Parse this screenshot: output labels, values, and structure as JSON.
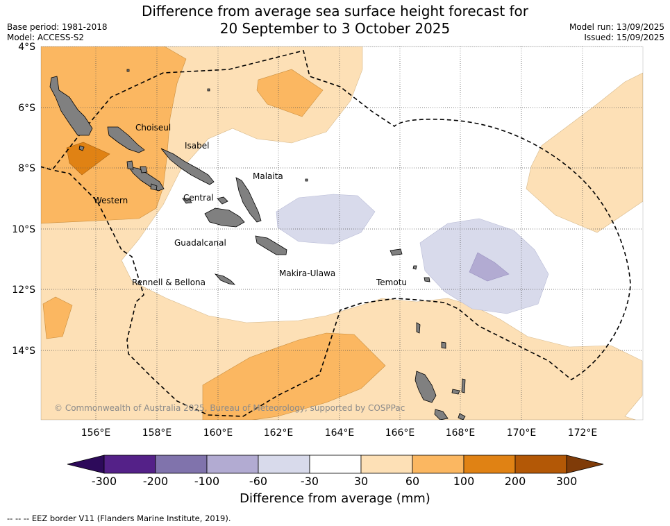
{
  "header": {
    "title_line1": "Difference from average sea surface height forecast for",
    "title_line2": "20 September to 3 October 2025",
    "base_period": "Base period: 1981-2018",
    "model": "Model: ACCESS-S2",
    "model_run": "Model run: 13/09/2025",
    "issued": "Issued: 15/09/2025"
  },
  "map": {
    "lat_ticks": [
      "4°S",
      "6°S",
      "8°S",
      "10°S",
      "12°S",
      "14°S"
    ],
    "lon_ticks": [
      "156°E",
      "158°E",
      "160°E",
      "162°E",
      "164°E",
      "166°E",
      "168°E",
      "170°E",
      "172°E"
    ],
    "province_labels": [
      "Choiseul",
      "Isabel",
      "Malaita",
      "Western",
      "Central",
      "Guadalcanal",
      "Makira-Ulawa",
      "Rennell & Bellona",
      "Temotu"
    ],
    "copyright": "© Commonwealth of Australia 2025, Bureau of Meteorology, supported by COSPPac"
  },
  "colorbar": {
    "title": "Difference from average (mm)",
    "labels": [
      "-300",
      "-200",
      "-100",
      "-60",
      "-30",
      "30",
      "60",
      "100",
      "200",
      "300"
    ],
    "colors": [
      "#2d0a5a",
      "#542188",
      "#8073ac",
      "#b2abd2",
      "#d8daeb",
      "#ffffff",
      "#fde0b6",
      "#fbb761",
      "#e08214",
      "#b35806",
      "#7f3b08"
    ]
  },
  "footer": {
    "eez_note": "--  --  -- EEZ border V11 (Flanders Marine Institute, 2019)."
  }
}
